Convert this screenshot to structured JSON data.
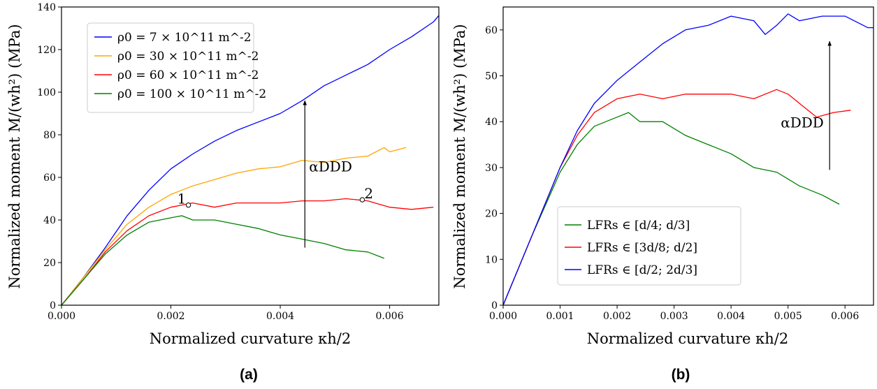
{
  "chart_data": [
    {
      "type": "line",
      "panel_label": "(a)",
      "xlabel": "Normalized curvature κh/2",
      "ylabel": "Normalized moment M/(wh²) (MPa)",
      "xlim": [
        0,
        0.0069
      ],
      "ylim": [
        0,
        140
      ],
      "xticks": [
        0.0,
        0.002,
        0.004,
        0.006
      ],
      "xtick_labels": [
        "0.000",
        "0.002",
        "0.004",
        "0.006"
      ],
      "yticks": [
        0,
        20,
        40,
        60,
        80,
        100,
        120,
        140
      ],
      "ytick_labels": [
        "0",
        "20",
        "40",
        "60",
        "80",
        "100",
        "120",
        "140"
      ],
      "grid": false,
      "legend_position": "top-left",
      "series": [
        {
          "name": "ρ0 = 7 × 10^11 m^-2",
          "color": "#0000ff",
          "x": [
            0,
            0.0004,
            0.0008,
            0.0012,
            0.0016,
            0.002,
            0.0024,
            0.0028,
            0.0032,
            0.0036,
            0.004,
            0.0044,
            0.0048,
            0.0052,
            0.0056,
            0.006,
            0.0064,
            0.0068,
            0.0069
          ],
          "y": [
            0,
            13,
            27,
            42,
            54,
            64,
            71,
            77,
            82,
            86,
            90,
            96,
            103,
            108,
            113,
            120,
            126,
            133,
            136
          ]
        },
        {
          "name": "ρ0 = 30 × 10^11 m^-2",
          "color": "#ffa500",
          "x": [
            0,
            0.0004,
            0.0008,
            0.0012,
            0.0016,
            0.002,
            0.0024,
            0.0028,
            0.0032,
            0.0036,
            0.004,
            0.0044,
            0.0048,
            0.0052,
            0.0056,
            0.0059,
            0.006,
            0.0063
          ],
          "y": [
            0,
            13,
            26,
            38,
            46,
            52,
            56,
            59,
            62,
            64,
            65,
            68,
            67,
            69,
            70,
            74,
            72,
            74
          ]
        },
        {
          "name": "ρ0 = 60 × 10^11 m^-2",
          "color": "#ff0000",
          "x": [
            0,
            0.0004,
            0.0008,
            0.0012,
            0.0016,
            0.002,
            0.0024,
            0.0028,
            0.0032,
            0.0036,
            0.004,
            0.0044,
            0.0048,
            0.0052,
            0.0056,
            0.006,
            0.0064,
            0.0068
          ],
          "y": [
            0,
            12,
            25,
            35,
            42,
            46,
            48,
            46,
            48,
            48,
            48,
            49,
            49,
            50,
            49,
            46,
            45,
            46
          ]
        },
        {
          "name": "ρ0 = 100 × 10^11 m^-2",
          "color": "#008000",
          "x": [
            0,
            0.0004,
            0.0008,
            0.0012,
            0.0016,
            0.002,
            0.0022,
            0.0024,
            0.0028,
            0.0032,
            0.0036,
            0.004,
            0.0044,
            0.0048,
            0.0052,
            0.0056,
            0.0059
          ],
          "y": [
            0,
            12,
            24,
            33,
            39,
            41,
            42,
            40,
            40,
            38,
            36,
            33,
            31,
            29,
            26,
            25,
            22
          ]
        }
      ],
      "annotations": [
        {
          "text": "1",
          "x": 0.00232,
          "y": 47
        },
        {
          "text": "2",
          "x": 0.0055,
          "y": 49.5
        },
        {
          "text": "αDDD",
          "arrow_from": [
            0.00445,
            27
          ],
          "arrow_to": [
            0.00445,
            96
          ]
        }
      ]
    },
    {
      "type": "line",
      "panel_label": "(b)",
      "xlabel": "Normalized curvature κh/2",
      "ylabel": "Normalized moment M/(wh²) (MPa)",
      "xlim": [
        0,
        0.0065
      ],
      "ylim": [
        0,
        65
      ],
      "xticks": [
        0.0,
        0.001,
        0.002,
        0.003,
        0.004,
        0.005,
        0.006
      ],
      "xtick_labels": [
        "0.000",
        "0.001",
        "0.002",
        "0.003",
        "0.004",
        "0.005",
        "0.006"
      ],
      "yticks": [
        0,
        10,
        20,
        30,
        40,
        50,
        60
      ],
      "ytick_labels": [
        "0",
        "10",
        "20",
        "30",
        "40",
        "50",
        "60"
      ],
      "grid": false,
      "legend_position": "bottom-left",
      "series": [
        {
          "name": "LFRs ∈ [d/4; d/3]",
          "color": "#008000",
          "x": [
            0,
            0.0005,
            0.001,
            0.0013,
            0.0016,
            0.002,
            0.0022,
            0.0024,
            0.0028,
            0.0032,
            0.0036,
            0.004,
            0.0044,
            0.0048,
            0.0052,
            0.0056,
            0.0059
          ],
          "y": [
            0,
            15,
            29,
            35,
            39,
            41,
            42,
            40,
            40,
            37,
            35,
            33,
            30,
            29,
            26,
            24,
            22
          ]
        },
        {
          "name": "LFRs ∈ [3d/8; d/2]",
          "color": "#ff0000",
          "x": [
            0,
            0.0005,
            0.001,
            0.0013,
            0.0016,
            0.002,
            0.0024,
            0.0028,
            0.0032,
            0.0036,
            0.004,
            0.0044,
            0.0048,
            0.005,
            0.0052,
            0.0055,
            0.0058,
            0.0061
          ],
          "y": [
            0,
            15,
            30,
            37,
            42,
            45,
            46,
            45,
            46,
            46,
            46,
            45,
            47,
            46,
            44,
            41,
            42,
            42.5
          ]
        },
        {
          "name": "LFRs ∈ [d/2; 2d/3]",
          "color": "#0000ff",
          "x": [
            0,
            0.0005,
            0.001,
            0.0013,
            0.0016,
            0.002,
            0.0024,
            0.0028,
            0.0032,
            0.0036,
            0.004,
            0.0044,
            0.0046,
            0.0048,
            0.005,
            0.0052,
            0.0056,
            0.006,
            0.0064,
            0.0065
          ],
          "y": [
            0,
            15,
            30,
            38,
            44,
            49,
            53,
            57,
            60,
            61,
            63,
            62,
            59,
            61,
            63.5,
            62,
            63,
            63,
            60.5,
            60.5
          ]
        }
      ],
      "annotations": [
        {
          "text": "αDDD",
          "arrow_from": [
            0.00573,
            29.5
          ],
          "arrow_to": [
            0.00573,
            57.5
          ]
        }
      ]
    }
  ]
}
